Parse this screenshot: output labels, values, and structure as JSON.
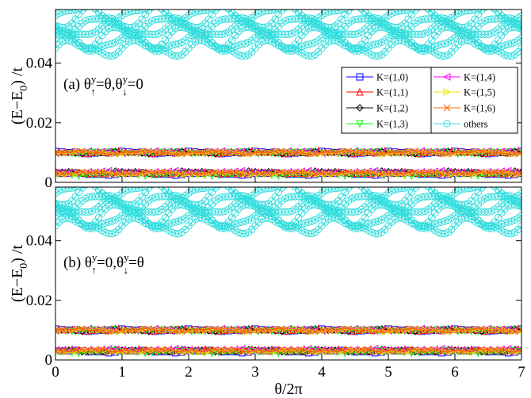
{
  "chart_data": [
    {
      "type": "scatter",
      "panel_label": "(a) θ↑y=θ,θ↓y=0",
      "label_parts": {
        "prefix": "(a) θ",
        "sup1": "y",
        "sub1": "↑",
        "mid": "=θ,θ",
        "sup2": "y",
        "sub2": "↓",
        "suffix": "=0"
      },
      "xlabel": "",
      "ylabel": "(E−E0) /t",
      "ylabel_parts": {
        "pre": "(E−E",
        "sub": "0",
        "post": ") /t"
      },
      "xlim": [
        0,
        7
      ],
      "ylim": [
        0,
        0.058
      ],
      "yticks": [
        0,
        0.02,
        0.04
      ],
      "ytick_labels": [
        "0",
        "0.02",
        "0.04"
      ],
      "xticks": [
        0,
        1,
        2,
        3,
        4,
        5,
        6,
        7
      ],
      "xtick_labels": [],
      "grid": false,
      "legend_placement": "right, upper-middle",
      "series": [
        {
          "name": "K=(1,0)",
          "marker": "square",
          "color": "#0000ff",
          "levels": [
            0.0028,
            0.01
          ]
        },
        {
          "name": "K=(1,1)",
          "marker": "triangle-up",
          "color": "#ff0000",
          "levels": [
            0.0032,
            0.0101
          ]
        },
        {
          "name": "K=(1,2)",
          "marker": "diamond",
          "color": "#000000",
          "levels": [
            0.0034,
            0.01
          ]
        },
        {
          "name": "K=(1,3)",
          "marker": "triangle-down",
          "color": "#00ff00",
          "levels": [
            0.0026,
            0.0099
          ]
        },
        {
          "name": "K=(1,4)",
          "marker": "triangle-left",
          "color": "#ff00ff",
          "levels": [
            0.0035,
            0.0102
          ]
        },
        {
          "name": "K=(1,5)",
          "marker": "triangle-right",
          "color": "#e6e600",
          "levels": [
            0.003,
            0.0099
          ]
        },
        {
          "name": "K=(1,6)",
          "marker": "x",
          "color": "#ff6600",
          "levels": [
            0.0031,
            0.01
          ]
        },
        {
          "name": "others",
          "marker": "circle",
          "color": "#33dddd",
          "band": [
            0.044,
            0.058
          ]
        }
      ]
    },
    {
      "type": "scatter",
      "panel_label": "(b) θ↑y=0,θ↓y=θ",
      "label_parts": {
        "prefix": "(b) θ",
        "sup1": "y",
        "sub1": "↑",
        "mid": "=0,θ",
        "sup2": "y",
        "sub2": "↓",
        "suffix": "=θ"
      },
      "xlabel": "θ/2π",
      "ylabel": "(E−E0) /t",
      "ylabel_parts": {
        "pre": "(E−E",
        "sub": "0",
        "post": ") /t"
      },
      "xlim": [
        0,
        7
      ],
      "ylim": [
        0,
        0.058
      ],
      "yticks": [
        0,
        0.02,
        0.04
      ],
      "ytick_labels": [
        "0",
        "0.02",
        "0.04"
      ],
      "xticks": [
        0,
        1,
        2,
        3,
        4,
        5,
        6,
        7
      ],
      "xtick_labels": [
        "0",
        "1",
        "2",
        "3",
        "4",
        "5",
        "6",
        "7"
      ],
      "grid": false,
      "legend_placement": "none",
      "series": [
        {
          "name": "K=(1,0)",
          "marker": "square",
          "color": "#0000ff",
          "levels": [
            0.0028,
            0.01
          ]
        },
        {
          "name": "K=(1,1)",
          "marker": "triangle-up",
          "color": "#ff0000",
          "levels": [
            0.0033,
            0.0101
          ]
        },
        {
          "name": "K=(1,2)",
          "marker": "diamond",
          "color": "#000000",
          "levels": [
            0.0031,
            0.01
          ]
        },
        {
          "name": "K=(1,3)",
          "marker": "triangle-down",
          "color": "#00ff00",
          "levels": [
            0.0027,
            0.0099
          ]
        },
        {
          "name": "K=(1,4)",
          "marker": "triangle-left",
          "color": "#ff00ff",
          "levels": [
            0.0034,
            0.0102
          ]
        },
        {
          "name": "K=(1,5)",
          "marker": "triangle-right",
          "color": "#e6e600",
          "levels": [
            0.0029,
            0.0099
          ]
        },
        {
          "name": "K=(1,6)",
          "marker": "x",
          "color": "#ff6600",
          "levels": [
            0.0032,
            0.01
          ]
        },
        {
          "name": "others",
          "marker": "circle",
          "color": "#33dddd",
          "band": [
            0.044,
            0.058
          ]
        }
      ]
    }
  ]
}
